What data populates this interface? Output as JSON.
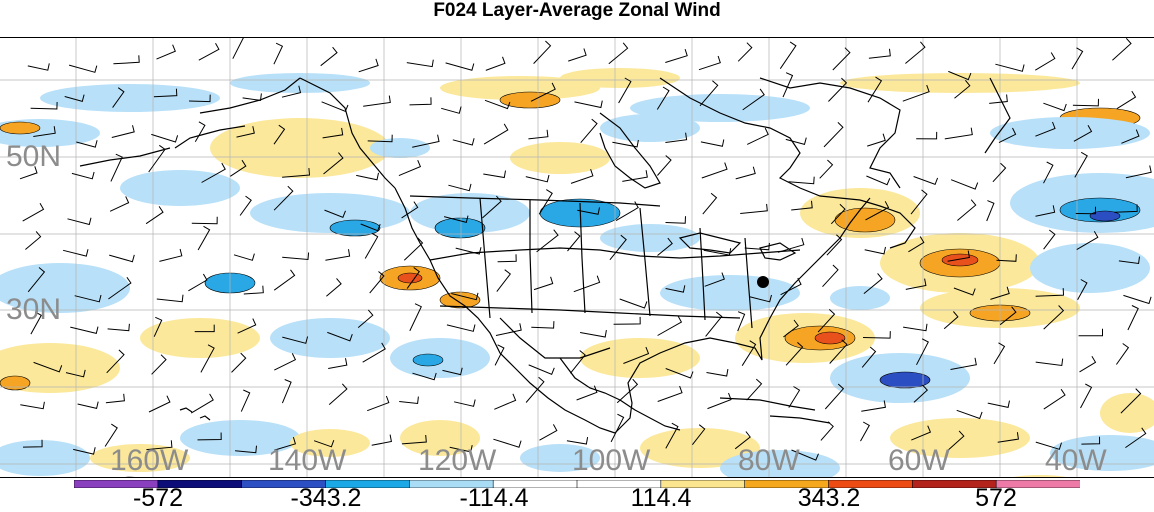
{
  "title": "F024 Layer-Average Zonal Wind",
  "lat_labels": [
    "50N",
    "30N"
  ],
  "lon_labels": [
    "160W",
    "140W",
    "120W",
    "100W",
    "80W",
    "60W",
    "40W"
  ],
  "colorbar": {
    "labels": [
      "-572",
      "-343.2",
      "-114.4",
      "114.4",
      "343.2",
      "572"
    ],
    "colors": [
      "#8a3fbf",
      "#0d0d7a",
      "#2d4fc4",
      "#1aa9e6",
      "#a9dcf5",
      "#ffffff",
      "#ffffff",
      "#fbe58f",
      "#f5a81e",
      "#ee4a14",
      "#b3231c",
      "#ee7aa8"
    ]
  },
  "palette": {
    "light_blue": "#b8e0f8",
    "mid_blue": "#2aa8e6",
    "dark_blue": "#2b4fc2",
    "light_yellow": "#fbe89a",
    "orange": "#f5a523",
    "red_orange": "#e8501c",
    "grid": "#b4b4b4",
    "coast": "#000000"
  },
  "marker": "station-dot"
}
